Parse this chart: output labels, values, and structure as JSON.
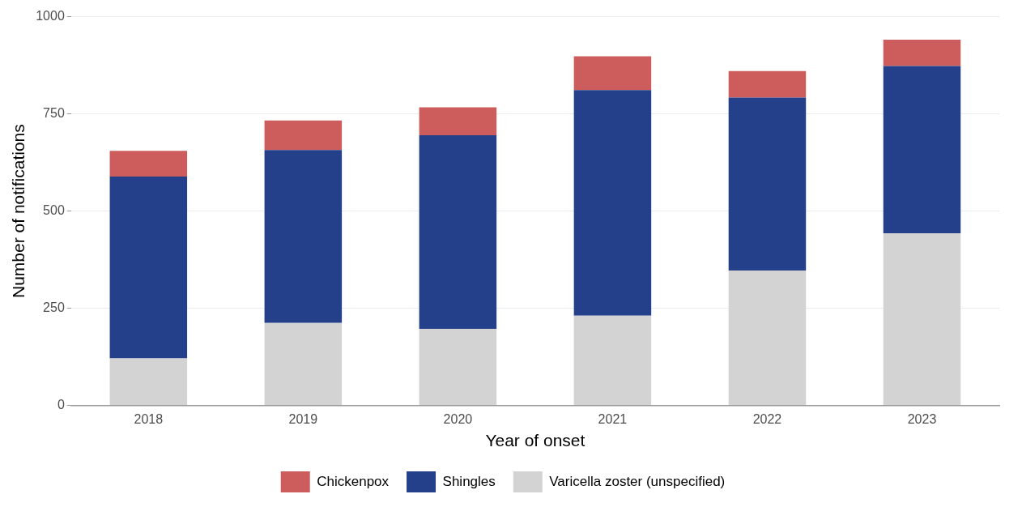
{
  "chart_data": {
    "type": "bar",
    "stacked": true,
    "xlabel": "Year of onset",
    "ylabel": "Number of notifications",
    "categories": [
      "2018",
      "2019",
      "2020",
      "2021",
      "2022",
      "2023"
    ],
    "series": [
      {
        "name": "Varicella zoster (unspecified)",
        "color": "#d3d3d3",
        "values": [
          121,
          212,
          197,
          231,
          347,
          443
        ]
      },
      {
        "name": "Shingles",
        "color": "#25408b",
        "values": [
          468,
          445,
          498,
          580,
          445,
          430
        ]
      },
      {
        "name": "Chickenpox",
        "color": "#cd5c5c",
        "values": [
          66,
          76,
          72,
          87,
          68,
          68
        ]
      }
    ],
    "ylim": [
      0,
      1000
    ],
    "yticks": [
      0,
      250,
      500,
      750,
      1000
    ],
    "grid": "y",
    "legend": "bottom"
  }
}
